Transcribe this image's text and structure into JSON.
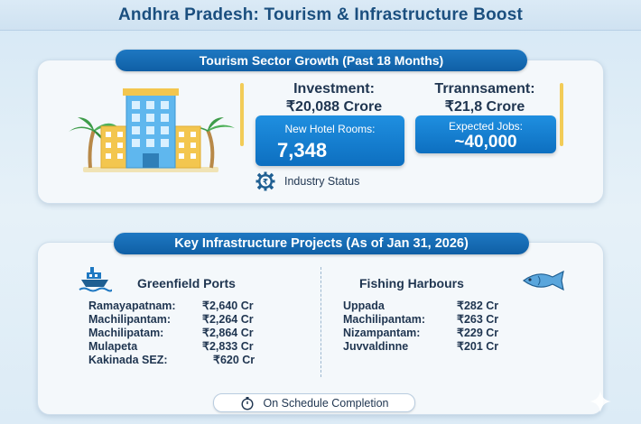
{
  "header": {
    "title": "Andhra Pradesh: Tourism & Infrastructure Boost"
  },
  "tourism": {
    "heading": "Tourism Sector Growth (Past 18 Months)",
    "investment_label": "Investment:",
    "investment_value": "₹20,088 Crore",
    "second_label": "Trrannsament:",
    "second_value": "₹21,8 Crore",
    "hotel_label": "New Hotel Rooms:",
    "hotel_value": "7,348",
    "jobs_label": "Expected Jobs:",
    "jobs_value": "~40,000",
    "industry_status": "Industry Status",
    "industry_icon": "rupee-gear-icon"
  },
  "infrastructure": {
    "heading": "Key Infrastructure Projects (As of Jan 31, 2026)",
    "ports_title": "Greenfield Ports",
    "ports_icon": "ship-icon",
    "ports": [
      {
        "name": "Ramayapatnam:",
        "value": "₹2,640 Cr"
      },
      {
        "name": "Machilipantam:",
        "value": "₹2,264 Cr"
      },
      {
        "name": "Machilipatam:",
        "value": "₹2,864 Cr"
      },
      {
        "name": "Mulapeta",
        "value": "₹2,833 Cr"
      },
      {
        "name": "Kakinada SEZ:",
        "value": "₹620 Cr"
      }
    ],
    "harbours_title": "Fishing Harbours",
    "harbours_icon": "fish-icon",
    "harbours": [
      {
        "name": "Uppada",
        "value": "₹282 Cr"
      },
      {
        "name": "Machilipantam:",
        "value": "₹263 Cr"
      },
      {
        "name": "Nizampantam:",
        "value": "₹229 Cr"
      },
      {
        "name": "Juvvaldinne",
        "value": "₹201 Cr"
      }
    ],
    "footer": "On Schedule Completion",
    "footer_icon": "stopwatch-icon"
  },
  "colors": {
    "accent_blue": "#1e78c2",
    "accent_yellow": "#f2cc57",
    "text_dark": "#1f3550"
  }
}
